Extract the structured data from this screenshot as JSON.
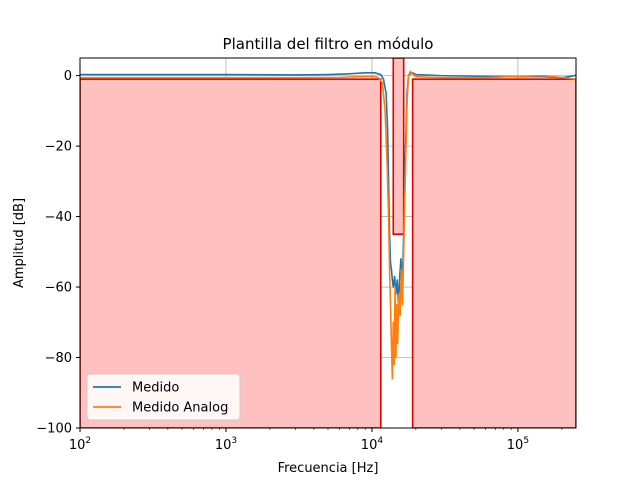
{
  "chart_data": {
    "type": "line",
    "title": "Plantilla del filtro en módulo",
    "xlabel": "Frecuencia [Hz]",
    "ylabel": "Amplitud [dB]",
    "xscale": "log",
    "xlim": [
      100,
      250000
    ],
    "ylim": [
      -100,
      5
    ],
    "grid": true,
    "legend_position": "lower-left",
    "x_ticks": [
      {
        "value": 100,
        "base": "10",
        "exp": "2"
      },
      {
        "value": 1000,
        "base": "10",
        "exp": "3"
      },
      {
        "value": 10000,
        "base": "10",
        "exp": "4"
      },
      {
        "value": 100000,
        "base": "10",
        "exp": "5"
      }
    ],
    "y_ticks": [
      {
        "value": 0,
        "label": "0"
      },
      {
        "value": -20,
        "label": "−20"
      },
      {
        "value": -40,
        "label": "−40"
      },
      {
        "value": -60,
        "label": "−60"
      },
      {
        "value": -80,
        "label": "−80"
      },
      {
        "value": -100,
        "label": "−100"
      }
    ],
    "template": {
      "fill_color": "#ffc0c0",
      "edge_color": "#e00000",
      "regions": [
        {
          "x": [
            100,
            11500
          ],
          "y": [
            -100,
            -1
          ]
        },
        {
          "x": [
            14000,
            16500
          ],
          "y": [
            -45,
            5
          ]
        },
        {
          "x": [
            19000,
            250000
          ],
          "y": [
            -100,
            -1
          ]
        }
      ]
    },
    "series": [
      {
        "name": "Medido",
        "color": "#1f77b4",
        "points": [
          [
            100,
            0.3
          ],
          [
            300,
            0.3
          ],
          [
            1000,
            0.3
          ],
          [
            3000,
            0.2
          ],
          [
            5000,
            0.3
          ],
          [
            7000,
            0.5
          ],
          [
            9000,
            0.8
          ],
          [
            10500,
            0.8
          ],
          [
            11500,
            0.3
          ],
          [
            12000,
            -1
          ],
          [
            12500,
            -5
          ],
          [
            12800,
            -15
          ],
          [
            13000,
            -30
          ],
          [
            13200,
            -45
          ],
          [
            13400,
            -53
          ],
          [
            13600,
            -55
          ],
          [
            13800,
            -58
          ],
          [
            14000,
            -60
          ],
          [
            14300,
            -57
          ],
          [
            14600,
            -62
          ],
          [
            14900,
            -58
          ],
          [
            15200,
            -65
          ],
          [
            15500,
            -57
          ],
          [
            15800,
            -52
          ],
          [
            16200,
            -58
          ],
          [
            16600,
            -40
          ],
          [
            17000,
            -20
          ],
          [
            17400,
            -5
          ],
          [
            17800,
            0
          ],
          [
            18300,
            0.5
          ],
          [
            19000,
            0.8
          ],
          [
            20000,
            0.3
          ],
          [
            30000,
            0
          ],
          [
            60000,
            -0.2
          ],
          [
            100000,
            -0.3
          ],
          [
            150000,
            -0.3
          ],
          [
            200000,
            -0.6
          ],
          [
            230000,
            -0.2
          ],
          [
            250000,
            0.1
          ]
        ]
      },
      {
        "name": "Medido Analog",
        "color": "#ff7f0e",
        "points": [
          [
            100,
            -0.6
          ],
          [
            300,
            -0.6
          ],
          [
            1000,
            -0.6
          ],
          [
            3000,
            -0.6
          ],
          [
            6000,
            -0.5
          ],
          [
            8000,
            -0.3
          ],
          [
            10000,
            -0.2
          ],
          [
            11000,
            -0.5
          ],
          [
            11800,
            -2
          ],
          [
            12300,
            -10
          ],
          [
            12700,
            -25
          ],
          [
            13000,
            -40
          ],
          [
            13200,
            -55
          ],
          [
            13400,
            -65
          ],
          [
            13600,
            -76
          ],
          [
            13800,
            -86
          ],
          [
            14000,
            -70
          ],
          [
            14200,
            -82
          ],
          [
            14400,
            -60
          ],
          [
            14600,
            -80
          ],
          [
            14800,
            -65
          ],
          [
            15000,
            -76
          ],
          [
            15300,
            -62
          ],
          [
            15600,
            -68
          ],
          [
            15900,
            -55
          ],
          [
            16200,
            -65
          ],
          [
            16600,
            -45
          ],
          [
            17000,
            -25
          ],
          [
            17400,
            -8
          ],
          [
            17800,
            0
          ],
          [
            18300,
            1.2
          ],
          [
            19000,
            0.5
          ],
          [
            20000,
            -0.3
          ],
          [
            30000,
            -0.6
          ],
          [
            60000,
            -0.6
          ],
          [
            100000,
            -0.2
          ],
          [
            150000,
            0
          ],
          [
            200000,
            -0.5
          ],
          [
            250000,
            -1
          ]
        ]
      }
    ]
  }
}
